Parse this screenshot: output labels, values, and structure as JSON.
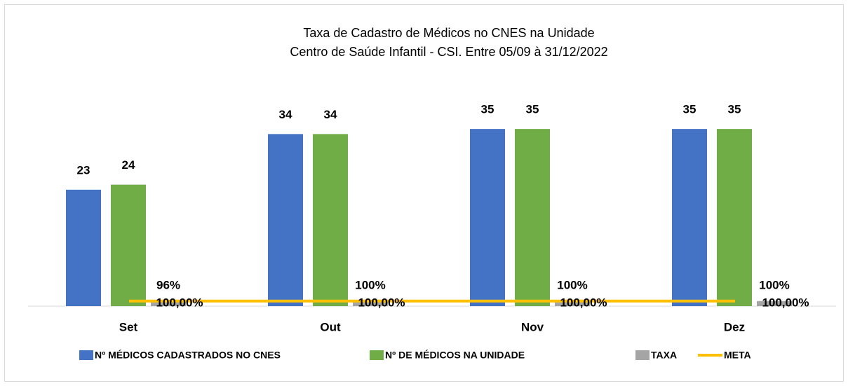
{
  "chart_data": {
    "type": "bar",
    "title": "Taxa de Cadastro de Médicos no CNES na Unidade",
    "subtitle": "Centro de Saúde Infantil - CSI. Entre 05/09 à 31/12/2022",
    "categories": [
      "Set",
      "Out",
      "Nov",
      "Dez"
    ],
    "series": [
      {
        "name": "Nº MÉDICOS CADASTRADOS NO CNES",
        "color": "#4472c4",
        "type": "bar",
        "values": [
          23,
          34,
          35,
          35
        ]
      },
      {
        "name": "Nº DE MÉDICOS NA UNIDADE",
        "color": "#70ad47",
        "type": "bar",
        "values": [
          24,
          34,
          35,
          35
        ]
      },
      {
        "name": "TAXA",
        "color": "#a5a5a5",
        "type": "bar",
        "values": [
          0.96,
          1,
          1,
          1
        ],
        "value_labels": [
          "96%",
          "100%",
          "100%",
          "100%"
        ]
      },
      {
        "name": "META",
        "color": "#ffc000",
        "type": "line",
        "values": [
          1,
          1,
          1,
          1
        ],
        "value_labels": [
          "100,00%",
          "100,00%",
          "100,00%",
          "100,00%"
        ]
      }
    ],
    "ylim": [
      0,
      40
    ],
    "legend": "bottom"
  }
}
